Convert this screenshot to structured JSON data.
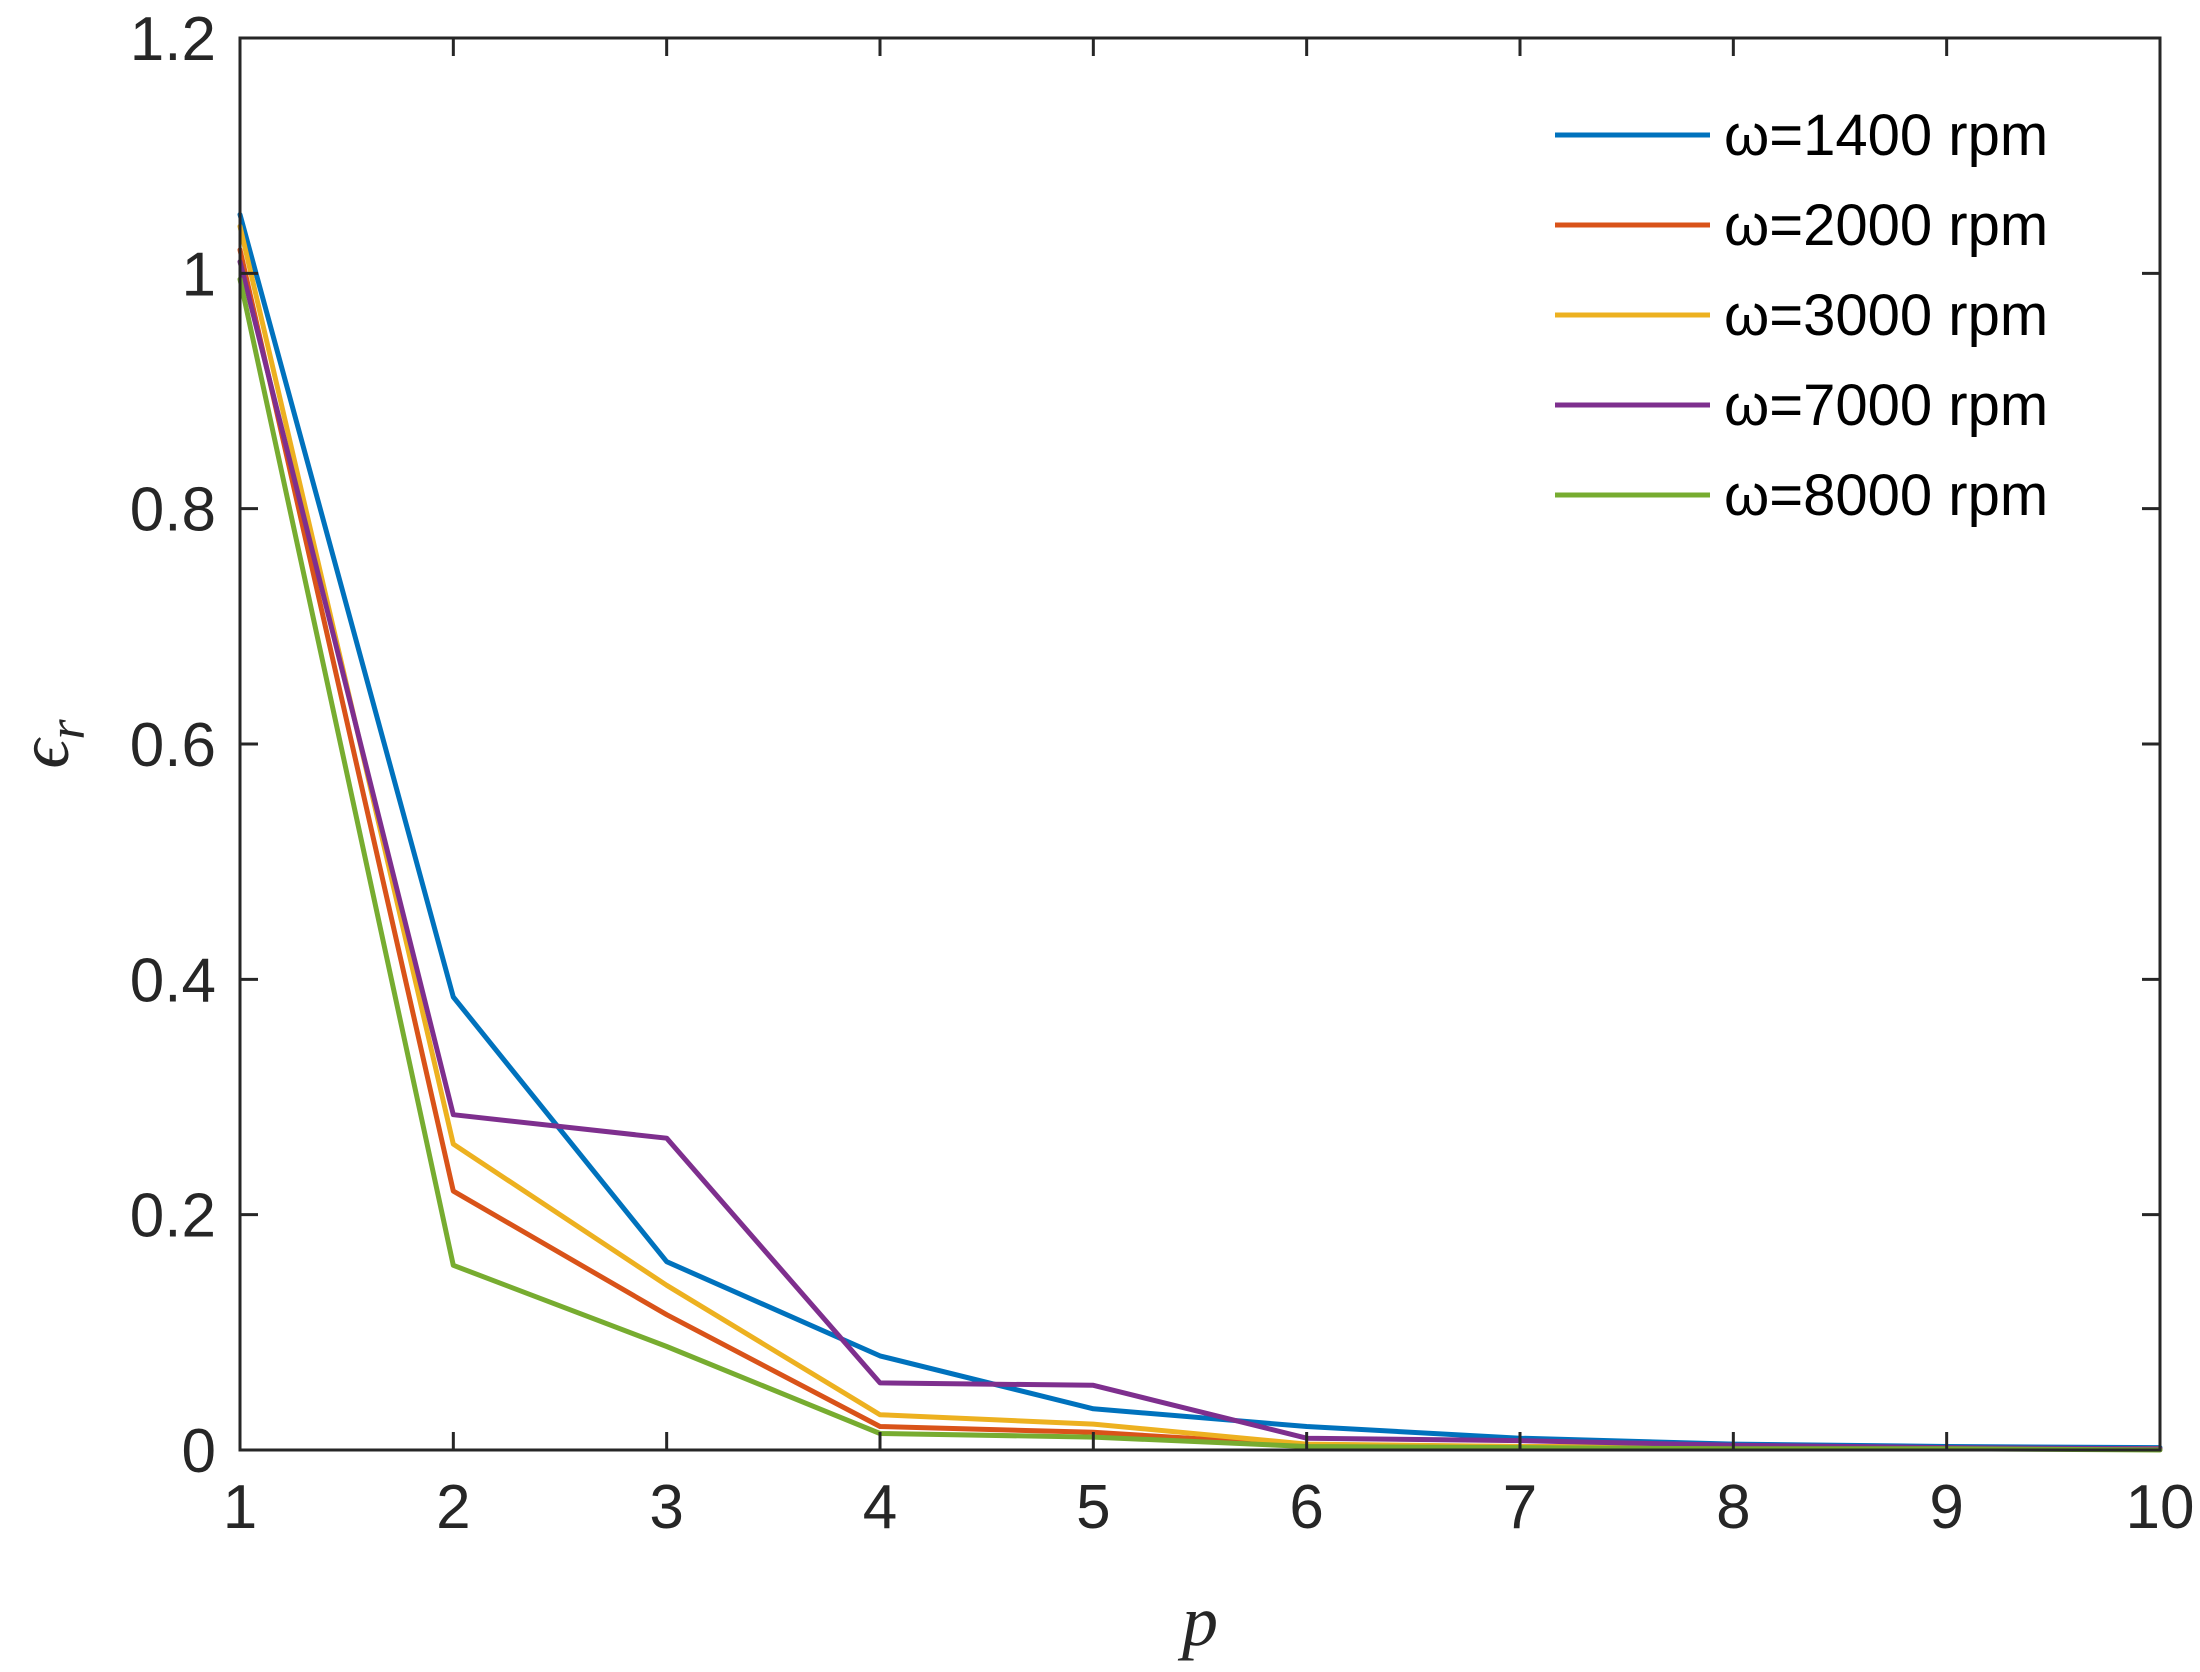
{
  "chart_data": {
    "type": "line",
    "xlabel": "p",
    "ylabel": "ϵr",
    "ylabel_main": "ϵ",
    "ylabel_sub": "r",
    "xlim": [
      1,
      10
    ],
    "ylim": [
      0,
      1.2
    ],
    "xticks": [
      1,
      2,
      3,
      4,
      5,
      6,
      7,
      8,
      9,
      10
    ],
    "yticks": [
      0,
      0.2,
      0.4,
      0.6,
      0.8,
      1,
      1.2
    ],
    "xtick_labels": [
      "1",
      "2",
      "3",
      "4",
      "5",
      "6",
      "7",
      "8",
      "9",
      "10"
    ],
    "ytick_labels": [
      "0",
      "0.2",
      "0.4",
      "0.6",
      "0.8",
      "1",
      "1.2"
    ],
    "grid": false,
    "legend_position": "top-right",
    "x": [
      1,
      2,
      3,
      4,
      5,
      6,
      7,
      8,
      9,
      10
    ],
    "series": [
      {
        "name": "ω=1400 rpm",
        "color": "#0072BD",
        "values": [
          1.05,
          0.385,
          0.16,
          0.08,
          0.035,
          0.02,
          0.01,
          0.005,
          0.003,
          0.002
        ]
      },
      {
        "name": "ω=2000 rpm",
        "color": "#D95319",
        "values": [
          1.02,
          0.22,
          0.115,
          0.02,
          0.015,
          0.004,
          0.003,
          0.002,
          0.001,
          0.001
        ]
      },
      {
        "name": "ω=3000 rpm",
        "color": "#EDB120",
        "values": [
          1.04,
          0.26,
          0.14,
          0.03,
          0.022,
          0.005,
          0.003,
          0.002,
          0.001,
          0.001
        ]
      },
      {
        "name": "ω=7000 rpm",
        "color": "#7E2F8E",
        "values": [
          1.01,
          0.285,
          0.265,
          0.057,
          0.055,
          0.01,
          0.008,
          0.004,
          0.002,
          0.001
        ]
      },
      {
        "name": "ω=8000 rpm",
        "color": "#77AC30",
        "values": [
          0.995,
          0.157,
          0.088,
          0.014,
          0.011,
          0.003,
          0.002,
          0.001,
          0.001,
          0.0
        ]
      }
    ]
  }
}
